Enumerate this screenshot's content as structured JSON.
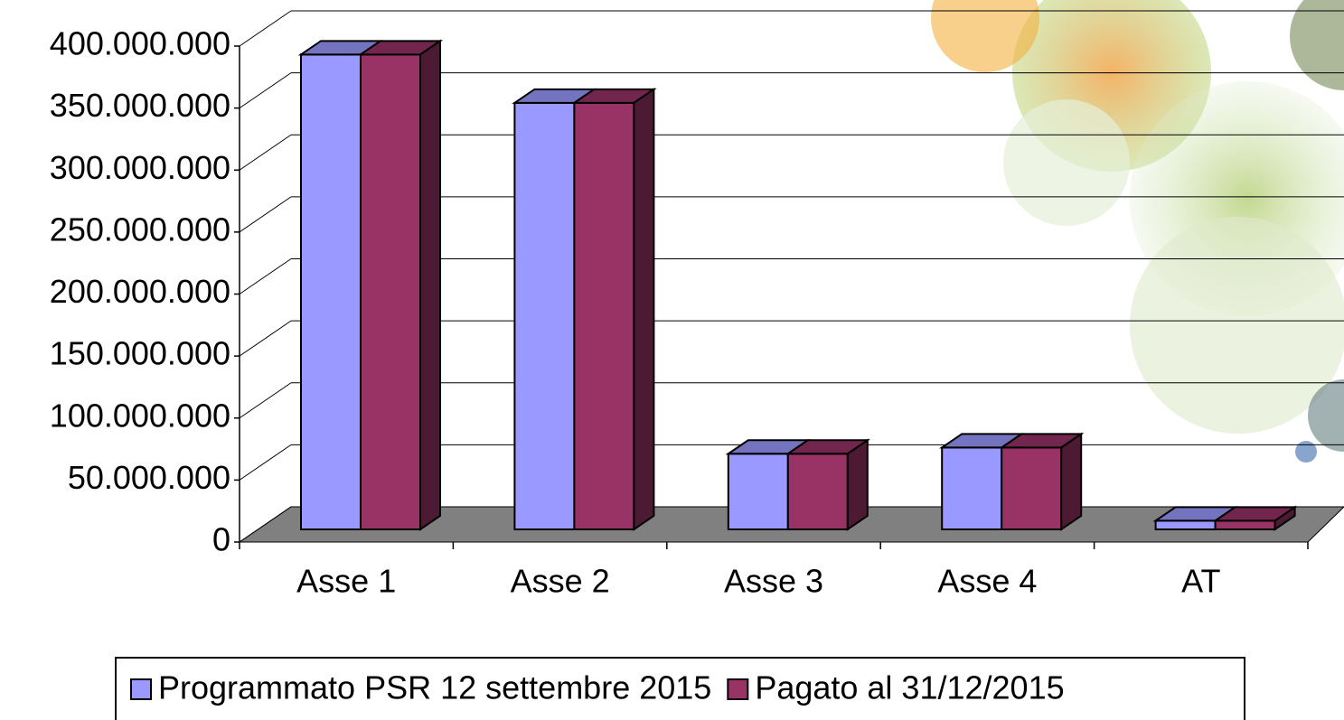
{
  "chart_data": {
    "type": "bar3d",
    "categories": [
      "Asse 1",
      "Asse 2",
      "Asse 3",
      "Asse 4",
      "AT"
    ],
    "series": [
      {
        "name": "Programmato PSR 12 settembre 2015",
        "color": "#9999ff",
        "values": [
          383000000,
          344000000,
          61000000,
          66000000,
          7000000
        ]
      },
      {
        "name": "Pagato al 31/12/2015",
        "color": "#993366",
        "values": [
          383000000,
          344000000,
          61000000,
          66000000,
          7000000
        ]
      }
    ],
    "ylim": [
      0,
      400000000
    ],
    "yticks": [
      0,
      {
        "value": 50000000,
        "label": "50.000.000"
      },
      {
        "value": 100000000,
        "label": "100.000.000"
      },
      {
        "value": 150000000,
        "label": "150.000.000"
      },
      {
        "value": 200000000,
        "label": "200.000.000"
      },
      {
        "value": 250000000,
        "label": "250.000.000"
      },
      {
        "value": 300000000,
        "label": "300.000.000"
      },
      {
        "value": 350000000,
        "label": "350.000.000"
      },
      {
        "value": 400000000,
        "label": "400.000.000"
      }
    ],
    "grid": true,
    "legend": "bottom"
  }
}
